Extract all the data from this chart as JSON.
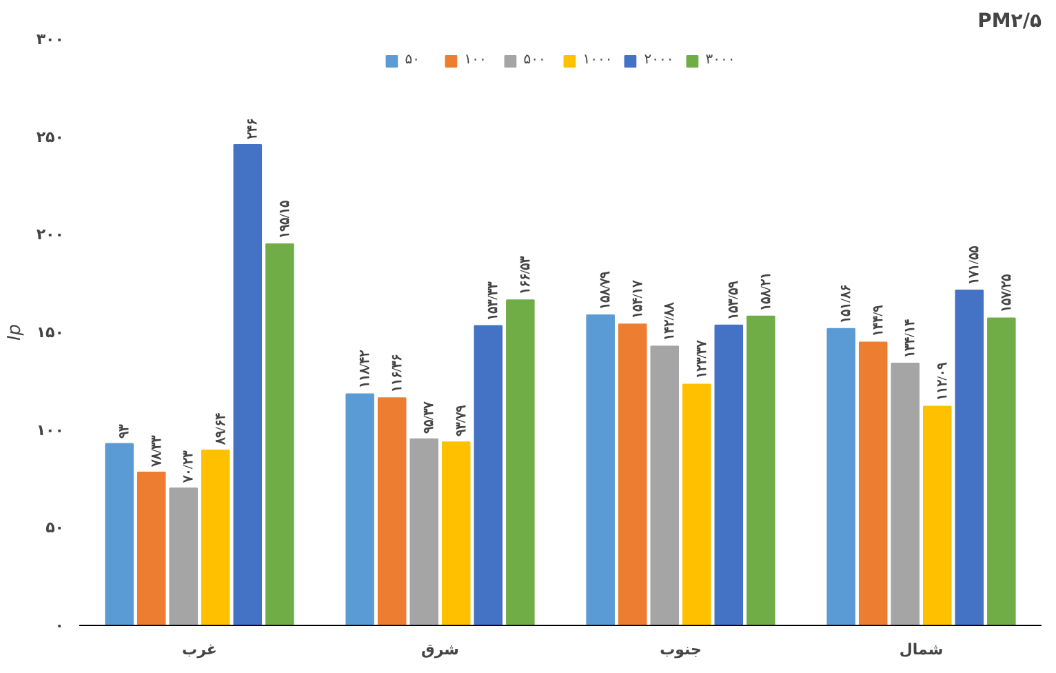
{
  "chart_data": {
    "type": "bar",
    "title": "PM۲/۵",
    "ylabel": "Ip",
    "categories": [
      "غرب",
      "شرق",
      "جنوب",
      "شمال"
    ],
    "series": [
      {
        "name": "۵۰",
        "color": "#5b9bd5",
        "values": [
          93,
          118.42,
          158.79,
          151.86
        ],
        "value_labels": [
          "۹۳",
          "۱۱۸/۴۲",
          "۱۵۸/۷۹",
          "۱۵۱/۸۶"
        ]
      },
      {
        "name": "۱۰۰",
        "color": "#ed7d31",
        "values": [
          78.33,
          116.36,
          154.17,
          144.9
        ],
        "value_labels": [
          "۷۸/۳۳",
          "۱۱۶/۳۶",
          "۱۵۴/۱۷",
          "۱۴۴/۹"
        ]
      },
      {
        "name": "۵۰۰",
        "color": "#a5a5a5",
        "values": [
          70.23,
          95.37,
          142.88,
          134.14
        ],
        "value_labels": [
          "۷۰/۲۳",
          "۹۵/۳۷",
          "۱۴۲/۸۸",
          "۱۳۴/۱۴"
        ]
      },
      {
        "name": "۱۰۰۰",
        "color": "#ffc000",
        "values": [
          89.64,
          93.79,
          123.37,
          112.09
        ],
        "value_labels": [
          "۸۹/۶۴",
          "۹۳/۷۹",
          "۱۲۳/۳۷",
          "۱۱۲/۰۹"
        ]
      },
      {
        "name": "۲۰۰۰",
        "color": "#4472c4",
        "values": [
          246,
          153.33,
          153.59,
          171.55
        ],
        "value_labels": [
          "۲۴۶",
          "۱۵۳/۳۳",
          "۱۵۳/۵۹",
          "۱۷۱/۵۵"
        ]
      },
      {
        "name": "۳۰۰۰",
        "color": "#70ad47",
        "values": [
          195.15,
          166.53,
          158.21,
          157.25
        ],
        "value_labels": [
          "۱۹۵/۱۵",
          "۱۶۶/۵۳",
          "۱۵۸/۲۱",
          "۱۵۷/۲۵"
        ]
      }
    ],
    "ylim": [
      0,
      300
    ],
    "yticks": [
      {
        "value": 0,
        "label": "۰"
      },
      {
        "value": 50,
        "label": "۵۰"
      },
      {
        "value": 100,
        "label": "۱۰۰"
      },
      {
        "value": 150,
        "label": "۱۵۰"
      },
      {
        "value": 200,
        "label": "۲۰۰"
      },
      {
        "value": 250,
        "label": "۲۵۰"
      },
      {
        "value": 300,
        "label": "۳۰۰"
      }
    ],
    "grid": false,
    "legend": "top"
  }
}
